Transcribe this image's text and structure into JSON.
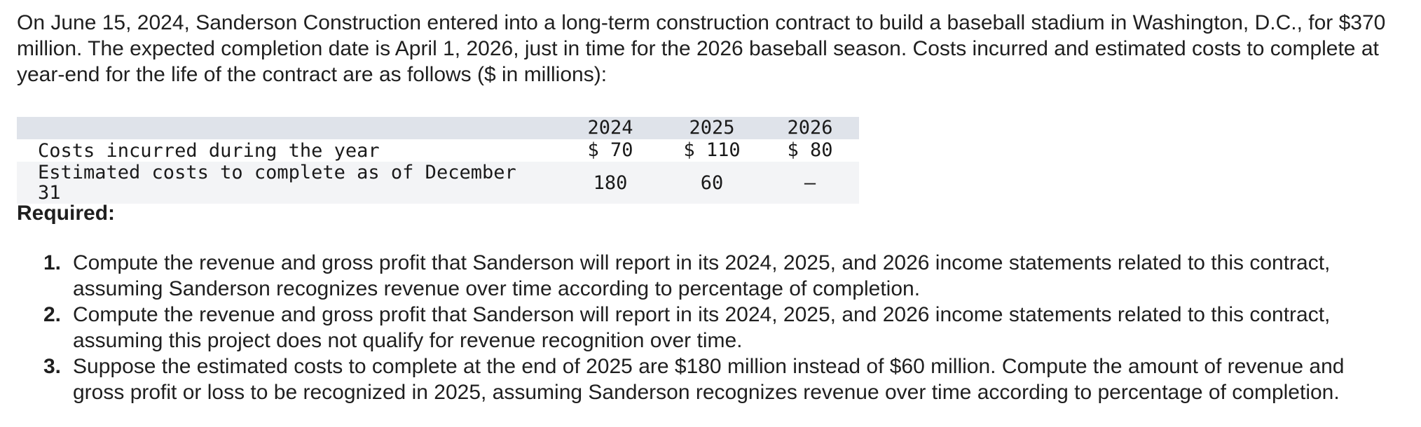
{
  "intro_text": "On June 15, 2024, Sanderson Construction entered into a long-term construction contract to build a baseball stadium in Washington, D.C., for $370 million. The expected completion date is April 1, 2026, just in time for the 2026 baseball season. Costs incurred and estimated costs to complete at year-end for the life of the contract are as follows ($ in millions):",
  "table": {
    "headers": [
      "",
      "2024",
      "2025",
      "2026"
    ],
    "rows": [
      {
        "label": "Costs incurred during the year",
        "values": [
          "$ 70",
          "$ 110",
          "$ 80"
        ]
      },
      {
        "label": "Estimated costs to complete as of December 31",
        "values": [
          "180",
          "60",
          "–"
        ]
      }
    ]
  },
  "required_heading": "Required:",
  "requirements": [
    {
      "number": "1.",
      "text": "Compute the revenue and gross profit that Sanderson will report in its 2024, 2025, and 2026 income statements related to this contract, assuming Sanderson recognizes revenue over time according to percentage of completion."
    },
    {
      "number": "2.",
      "text": "Compute the revenue and gross profit that Sanderson will report in its 2024, 2025, and 2026 income statements related to this contract, assuming this project does not qualify for revenue recognition over time."
    },
    {
      "number": "3.",
      "text": "Suppose the estimated costs to complete at the end of 2025 are $180 million instead of $60 million. Compute the amount of revenue and gross profit or loss to be recognized in 2025, assuming Sanderson recognizes revenue over time according to percentage of completion."
    }
  ]
}
